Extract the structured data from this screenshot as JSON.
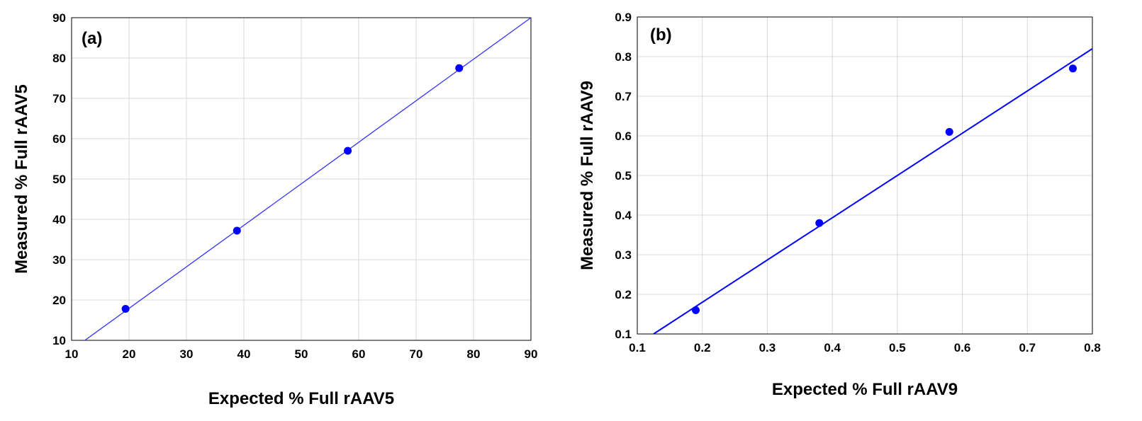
{
  "chart_data": [
    {
      "type": "scatter",
      "panel_label": "(a)",
      "xlabel": "Expected % Full rAAV5",
      "ylabel": "Measured % Full rAAV5",
      "xlim": [
        10,
        90
      ],
      "ylim": [
        10,
        90
      ],
      "xticks": [
        "10",
        "20",
        "30",
        "40",
        "50",
        "60",
        "70",
        "80",
        "90"
      ],
      "yticks": [
        "10",
        "20",
        "30",
        "40",
        "50",
        "60",
        "70",
        "80",
        "90"
      ],
      "grid": true,
      "series": [
        {
          "name": "measured",
          "x": [
            19.4,
            38.8,
            58.1,
            77.5
          ],
          "y": [
            17.8,
            37.2,
            57.0,
            77.5
          ]
        }
      ],
      "fit_line": {
        "x": [
          12.3,
          90
        ],
        "y": [
          10,
          90
        ]
      },
      "color": "#0000ff"
    },
    {
      "type": "scatter",
      "panel_label": "(b)",
      "xlabel": "Expected % Full rAAV9",
      "ylabel": "Measured % Full rAAV9",
      "xlim": [
        0.1,
        0.8
      ],
      "ylim": [
        0.1,
        0.9
      ],
      "xticks": [
        "0.1",
        "0.2",
        "0.3",
        "0.4",
        "0.5",
        "0.6",
        "0.7",
        "0.8"
      ],
      "yticks": [
        "0.1",
        "0.2",
        "0.3",
        "0.4",
        "0.5",
        "0.6",
        "0.7",
        "0.8",
        "0.9"
      ],
      "grid": true,
      "series": [
        {
          "name": "measured",
          "x": [
            0.19,
            0.38,
            0.58,
            0.77
          ],
          "y": [
            0.16,
            0.38,
            0.61,
            0.77
          ]
        }
      ],
      "fit_line": {
        "x": [
          0.125,
          0.8
        ],
        "y": [
          0.1,
          0.82
        ]
      },
      "color": "#0000ff"
    }
  ]
}
